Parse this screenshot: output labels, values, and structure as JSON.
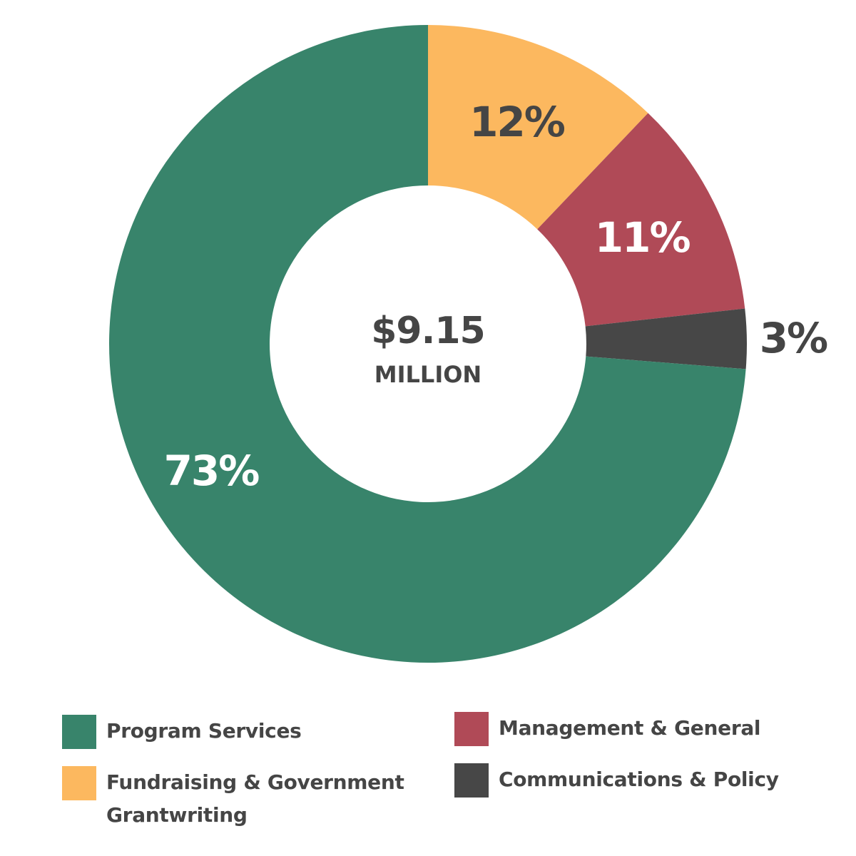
{
  "chart_data": {
    "type": "pie",
    "categories": [
      "Program Services",
      "Fundraising & Government Grantwriting",
      "Management & General",
      "Communications & Policy"
    ],
    "values": [
      73,
      12,
      11,
      3
    ],
    "slice_labels": [
      "73%",
      "12%",
      "11%",
      "3%"
    ],
    "colors": [
      "#38846b",
      "#fcb85f",
      "#b04a57",
      "#474747"
    ],
    "center_amount": "$9.15",
    "center_unit": "MILLION",
    "legend_position": "bottom"
  },
  "legend": {
    "items": [
      {
        "label": "Program Services",
        "color": "#38846b"
      },
      {
        "label": "Management & General",
        "color": "#b04a57"
      },
      {
        "label": "Fundraising & Government Grantwriting",
        "color": "#fcb85f"
      },
      {
        "label": "Communications & Policy",
        "color": "#474747"
      }
    ]
  }
}
